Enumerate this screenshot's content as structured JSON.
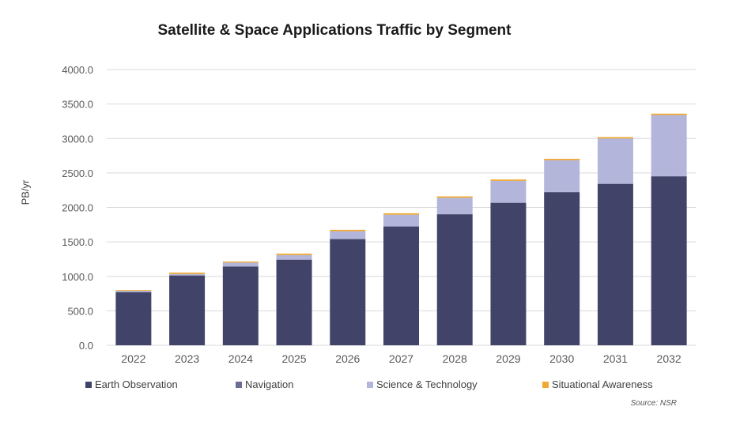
{
  "chart_data": {
    "type": "bar",
    "stacked": true,
    "title": "Satellite & Space Applications Traffic by Segment",
    "xlabel": "",
    "ylabel": "PB/yr",
    "ylim": [
      0,
      4000
    ],
    "yticks": [
      "0.0",
      "500.0",
      "1000.0",
      "1500.0",
      "2000.0",
      "2500.0",
      "3000.0",
      "3500.0",
      "4000.0"
    ],
    "grid": true,
    "legend_position": "bottom",
    "categories": [
      "2022",
      "2023",
      "2024",
      "2025",
      "2026",
      "2027",
      "2028",
      "2029",
      "2030",
      "2031",
      "2032"
    ],
    "series": [
      {
        "name": "Earth Observation",
        "color": "#414468",
        "values": [
          770,
          1010,
          1140,
          1240,
          1540,
          1720,
          1900,
          2065,
          2220,
          2340,
          2450
        ]
      },
      {
        "name": "Navigation",
        "color": "#6b6e92",
        "values": [
          5,
          5,
          5,
          5,
          5,
          5,
          5,
          5,
          5,
          5,
          5
        ]
      },
      {
        "name": "Science & Technology",
        "color": "#b3b6da",
        "values": [
          15,
          20,
          55,
          65,
          110,
          170,
          235,
          315,
          460,
          655,
          885
        ]
      },
      {
        "name": "Situational Awareness",
        "color": "#f0a830",
        "values": [
          10,
          20,
          15,
          20,
          20,
          20,
          20,
          20,
          20,
          20,
          20
        ]
      }
    ],
    "source": "Source: NSR"
  }
}
